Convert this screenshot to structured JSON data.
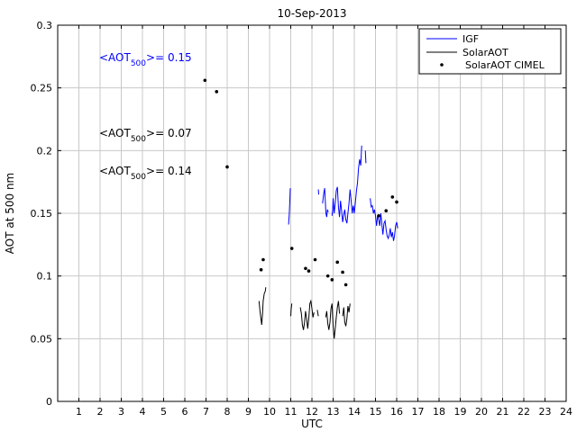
{
  "chart_data": {
    "type": "line",
    "title": "10-Sep-2013",
    "xlabel": "UTC",
    "ylabel": "AOT at 500 nm",
    "xlim": [
      0,
      24
    ],
    "ylim": [
      0,
      0.3
    ],
    "xticks": [
      1,
      2,
      3,
      4,
      5,
      6,
      7,
      8,
      9,
      10,
      11,
      12,
      13,
      14,
      15,
      16,
      17,
      18,
      19,
      20,
      21,
      22,
      23,
      24
    ],
    "yticks": [
      0,
      0.05,
      0.1,
      0.15,
      0.2,
      0.25,
      0.3
    ],
    "ytick_labels": [
      "0",
      "0.05",
      "0.1",
      "0.15",
      "0.2",
      "0.25",
      "0.3"
    ],
    "grid": true,
    "legend_position": "top-right",
    "legend": [
      "IGF",
      "SolarAOT",
      "SolarAOT CIMEL"
    ],
    "colors": {
      "IGF": "#0000ff",
      "SolarAOT": "#000000",
      "CIMEL": "#000000"
    },
    "annotations": [
      {
        "prefix": "<AOT",
        "sub": "500",
        "suffix": ">= 0.15",
        "color": "#0000ff"
      },
      {
        "prefix": "<AOT",
        "sub": "500",
        "suffix": ">= 0.07",
        "color": "#000000"
      },
      {
        "prefix": "<AOT",
        "sub": "500",
        "suffix": ">= 0.14",
        "color": "#000000"
      }
    ],
    "series": [
      {
        "name": "IGF",
        "style": "line",
        "segments": [
          [
            [
              10.9,
              0.141
            ],
            [
              10.93,
              0.15
            ],
            [
              10.96,
              0.162
            ],
            [
              10.98,
              0.17
            ]
          ],
          [
            [
              12.3,
              0.169
            ],
            [
              12.32,
              0.165
            ]
          ],
          [
            [
              12.5,
              0.158
            ],
            [
              12.55,
              0.165
            ],
            [
              12.6,
              0.17
            ],
            [
              12.62,
              0.163
            ],
            [
              12.66,
              0.15
            ],
            [
              12.7,
              0.147
            ],
            [
              12.73,
              0.153
            ],
            [
              12.77,
              0.151
            ]
          ],
          [
            [
              12.95,
              0.148
            ],
            [
              12.98,
              0.153
            ],
            [
              13.0,
              0.162
            ],
            [
              13.05,
              0.15
            ],
            [
              13.1,
              0.158
            ],
            [
              13.15,
              0.168
            ],
            [
              13.2,
              0.171
            ],
            [
              13.25,
              0.155
            ],
            [
              13.3,
              0.147
            ],
            [
              13.35,
              0.16
            ],
            [
              13.4,
              0.152
            ],
            [
              13.45,
              0.143
            ],
            [
              13.5,
              0.149
            ],
            [
              13.55,
              0.153
            ],
            [
              13.6,
              0.145
            ],
            [
              13.65,
              0.142
            ],
            [
              13.7,
              0.15
            ],
            [
              13.75,
              0.158
            ],
            [
              13.8,
              0.169
            ],
            [
              13.85,
              0.16
            ],
            [
              13.9,
              0.15
            ],
            [
              13.95,
              0.156
            ],
            [
              14.0,
              0.15
            ],
            [
              14.05,
              0.159
            ],
            [
              14.1,
              0.168
            ],
            [
              14.15,
              0.174
            ],
            [
              14.2,
              0.186
            ],
            [
              14.25,
              0.193
            ],
            [
              14.3,
              0.188
            ],
            [
              14.35,
              0.204
            ]
          ],
          [
            [
              14.52,
              0.2
            ],
            [
              14.55,
              0.19
            ]
          ],
          [
            [
              14.75,
              0.162
            ],
            [
              14.8,
              0.155
            ],
            [
              14.85,
              0.156
            ],
            [
              14.9,
              0.15
            ],
            [
              14.95,
              0.153
            ],
            [
              15.0,
              0.148
            ],
            [
              15.05,
              0.14
            ],
            [
              15.1,
              0.148
            ],
            [
              15.15,
              0.145
            ],
            [
              15.2,
              0.14
            ],
            [
              15.25,
              0.15
            ],
            [
              15.3,
              0.141
            ],
            [
              15.35,
              0.133
            ],
            [
              15.4,
              0.142
            ],
            [
              15.45,
              0.144
            ],
            [
              15.5,
              0.137
            ],
            [
              15.55,
              0.132
            ],
            [
              15.6,
              0.13
            ],
            [
              15.65,
              0.133
            ],
            [
              15.7,
              0.138
            ],
            [
              15.75,
              0.131
            ],
            [
              15.8,
              0.135
            ],
            [
              15.85,
              0.128
            ],
            [
              15.9,
              0.132
            ],
            [
              15.95,
              0.14
            ],
            [
              16.0,
              0.143
            ],
            [
              16.05,
              0.138
            ]
          ]
        ]
      },
      {
        "name": "SolarAOT",
        "style": "line",
        "segments": [
          [
            [
              9.5,
              0.08
            ],
            [
              9.55,
              0.072
            ],
            [
              9.6,
              0.065
            ],
            [
              9.63,
              0.061
            ],
            [
              9.67,
              0.07
            ],
            [
              9.7,
              0.08
            ],
            [
              9.75,
              0.086
            ],
            [
              9.8,
              0.088
            ],
            [
              9.82,
              0.091
            ]
          ],
          [
            [
              11.0,
              0.068
            ],
            [
              11.02,
              0.074
            ],
            [
              11.05,
              0.078
            ]
          ],
          [
            [
              11.45,
              0.075
            ],
            [
              11.5,
              0.07
            ],
            [
              11.55,
              0.061
            ],
            [
              11.6,
              0.057
            ],
            [
              11.65,
              0.063
            ],
            [
              11.7,
              0.072
            ],
            [
              11.75,
              0.066
            ],
            [
              11.8,
              0.058
            ],
            [
              11.85,
              0.066
            ],
            [
              11.9,
              0.078
            ],
            [
              11.95,
              0.08
            ],
            [
              12.0,
              0.074
            ],
            [
              12.05,
              0.067
            ],
            [
              12.1,
              0.071
            ]
          ],
          [
            [
              12.25,
              0.073
            ],
            [
              12.3,
              0.068
            ]
          ],
          [
            [
              12.65,
              0.067
            ],
            [
              12.7,
              0.072
            ],
            [
              12.75,
              0.062
            ],
            [
              12.8,
              0.057
            ],
            [
              12.85,
              0.063
            ],
            [
              12.9,
              0.074
            ],
            [
              12.95,
              0.078
            ],
            [
              13.0,
              0.06
            ],
            [
              13.05,
              0.05
            ],
            [
              13.1,
              0.058
            ],
            [
              13.15,
              0.067
            ],
            [
              13.2,
              0.075
            ],
            [
              13.25,
              0.08
            ],
            [
              13.3,
              0.07
            ]
          ],
          [
            [
              13.45,
              0.068
            ],
            [
              13.5,
              0.075
            ],
            [
              13.55,
              0.063
            ],
            [
              13.6,
              0.06
            ],
            [
              13.65,
              0.066
            ],
            [
              13.7,
              0.076
            ],
            [
              13.75,
              0.071
            ],
            [
              13.8,
              0.078
            ]
          ]
        ]
      },
      {
        "name": "SolarAOT CIMEL",
        "style": "scatter",
        "points": [
          [
            6.95,
            0.256
          ],
          [
            7.5,
            0.247
          ],
          [
            8.0,
            0.187
          ],
          [
            9.6,
            0.105
          ],
          [
            9.7,
            0.113
          ],
          [
            11.05,
            0.122
          ],
          [
            11.7,
            0.106
          ],
          [
            11.85,
            0.104
          ],
          [
            12.15,
            0.113
          ],
          [
            12.75,
            0.1
          ],
          [
            12.95,
            0.097
          ],
          [
            13.2,
            0.111
          ],
          [
            13.45,
            0.103
          ],
          [
            13.6,
            0.093
          ],
          [
            15.15,
            0.148
          ],
          [
            15.5,
            0.152
          ],
          [
            15.8,
            0.163
          ],
          [
            16.0,
            0.159
          ]
        ]
      }
    ]
  }
}
